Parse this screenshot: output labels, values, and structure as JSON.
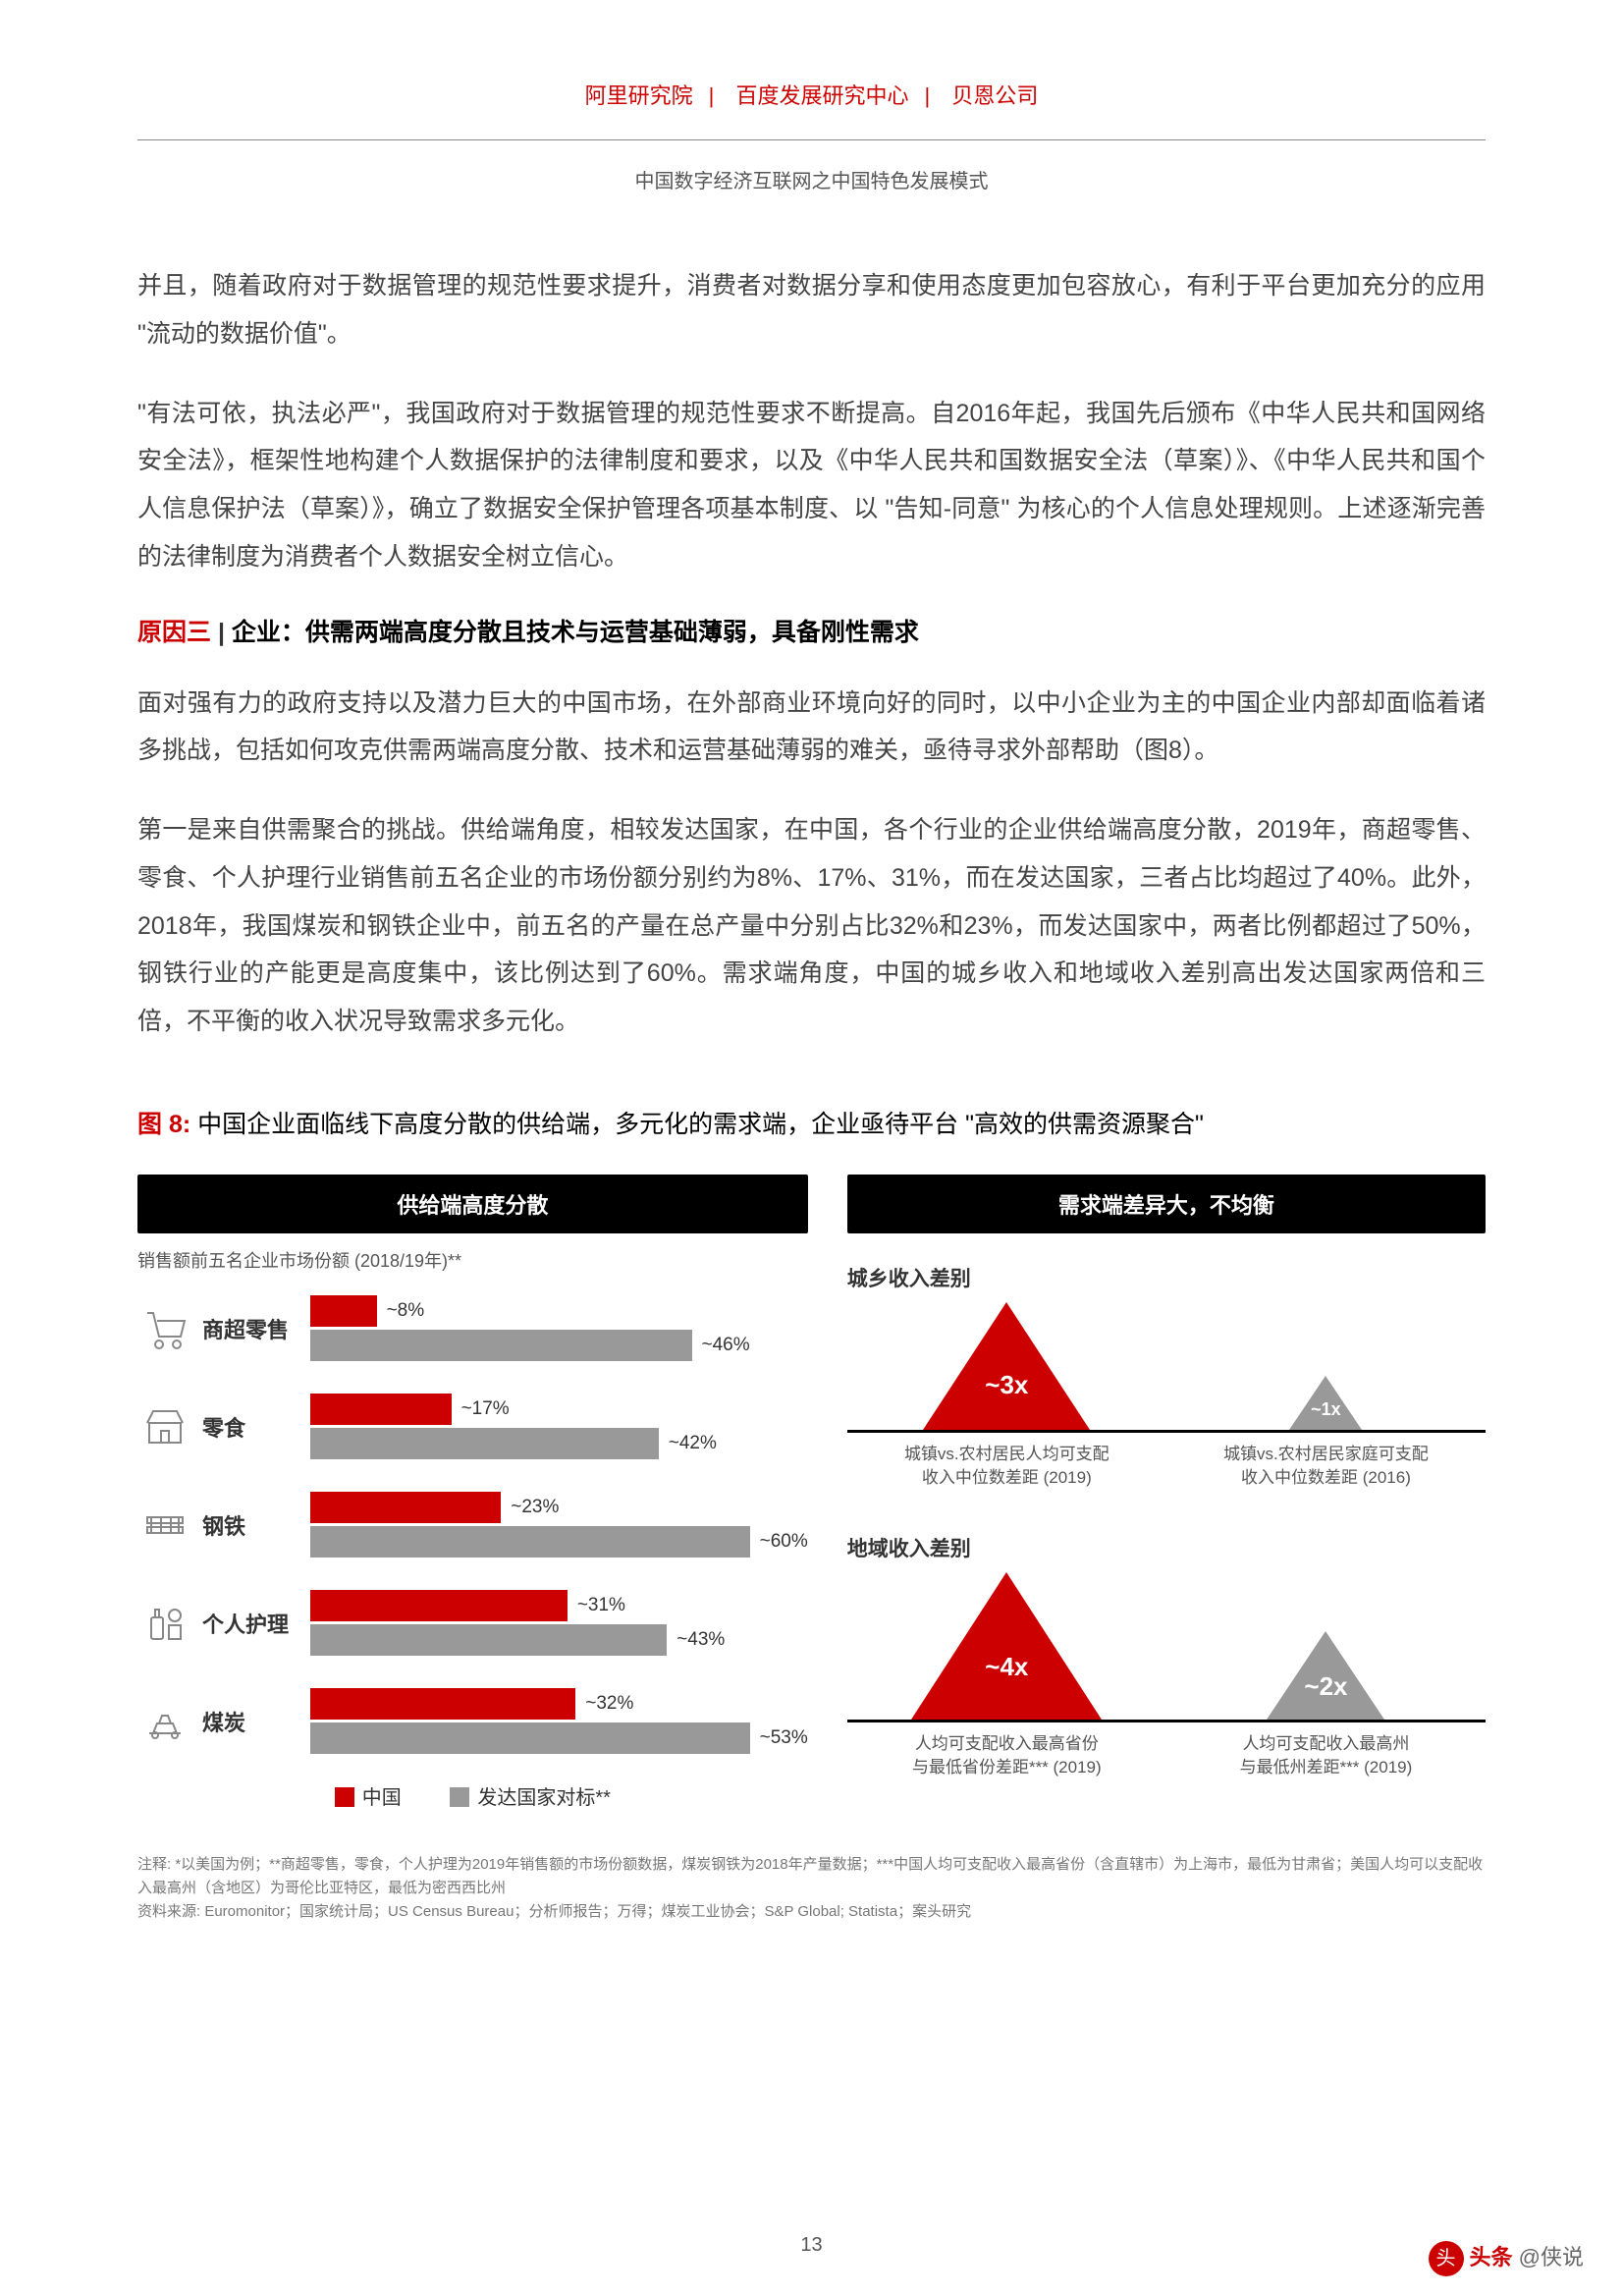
{
  "header": {
    "org1": "阿里研究院",
    "org2": "百度发展研究中心",
    "org3": "贝恩公司"
  },
  "titleLine": "中国数字经济互联网之中国特色发展模式",
  "para1": "并且，随着政府对于数据管理的规范性要求提升，消费者对数据分享和使用态度更加包容放心，有利于平台更加充分的应用 \"流动的数据价值\"。",
  "para2": "\"有法可依，执法必严\"，我国政府对于数据管理的规范性要求不断提高。自2016年起，我国先后颁布《中华人民共和国网络安全法》，框架性地构建个人数据保护的法律制度和要求，以及《中华人民共和国数据安全法（草案）》、《中华人民共和国个人信息保护法（草案）》，确立了数据安全保护管理各项基本制度、以 \"告知-同意\" 为核心的个人信息处理规则。上述逐渐完善的法律制度为消费者个人数据安全树立信心。",
  "reason": {
    "red": "原因三",
    "divider": " | ",
    "black": "企业：供需两端高度分散且技术与运营基础薄弱，具备刚性需求"
  },
  "para3": "面对强有力的政府支持以及潜力巨大的中国市场，在外部商业环境向好的同时，以中小企业为主的中国企业内部却面临着诸多挑战，包括如何攻克供需两端高度分散、技术和运营基础薄弱的难关，亟待寻求外部帮助（图8）。",
  "para4": "第一是来自供需聚合的挑战。供给端角度，相较发达国家，在中国，各个行业的企业供给端高度分散，2019年，商超零售、零食、个人护理行业销售前五名企业的市场份额分别约为8%、17%、31%，而在发达国家，三者占比均超过了40%。此外，2018年，我国煤炭和钢铁企业中，前五名的产量在总产量中分别占比32%和23%，而发达国家中，两者比例都超过了50%，钢铁行业的产能更是高度集中，该比例达到了60%。需求端角度，中国的城乡收入和地域收入差别高出发达国家两倍和三倍，不平衡的收入状况导致需求多元化。",
  "figure": {
    "prefix": "图 8:",
    "title": " 中国企业面临线下高度分散的供给端，多元化的需求端，企业亟待平台 \"高效的供需资源聚合\"",
    "left": {
      "header": "供给端高度分散",
      "subcap": "销售额前五名企业市场份额 (2018/19年)**",
      "scale": 60,
      "rows": [
        {
          "icon": "cart",
          "label": "商超零售",
          "china": 8,
          "chinaLbl": "~8%",
          "dev": 46,
          "devLbl": "~46%"
        },
        {
          "icon": "shop",
          "label": "零食",
          "china": 17,
          "chinaLbl": "~17%",
          "dev": 42,
          "devLbl": "~42%"
        },
        {
          "icon": "steel",
          "label": "钢铁",
          "china": 23,
          "chinaLbl": "~23%",
          "dev": 60,
          "devLbl": "~60%"
        },
        {
          "icon": "care",
          "label": "个人护理",
          "china": 31,
          "chinaLbl": "~31%",
          "dev": 43,
          "devLbl": "~43%"
        },
        {
          "icon": "coal",
          "label": "煤炭",
          "china": 32,
          "chinaLbl": "~32%",
          "dev": 53,
          "devLbl": "~53%"
        }
      ],
      "legend": {
        "china": "中国",
        "dev": "发达国家对标**"
      }
    },
    "right": {
      "header": "需求端差异大，不均衡",
      "groups": [
        {
          "title": "城乡收入差别",
          "tris": [
            {
              "val": "~3x",
              "h": 130,
              "w": 170,
              "color": "#cc0000",
              "numBottom": 30
            },
            {
              "val": "~1x",
              "h": 55,
              "w": 75,
              "color": "#999",
              "numBottom": 10,
              "font": 18
            }
          ],
          "caps": [
            "城镇vs.农村居民人均可支配\n收入中位数差距 (2019)",
            "城镇vs.农村居民家庭可支配\n收入中位数差距 (2016)"
          ]
        },
        {
          "title": "地域收入差别",
          "tris": [
            {
              "val": "~4x",
              "h": 150,
              "w": 195,
              "color": "#cc0000",
              "numBottom": 38
            },
            {
              "val": "~2x",
              "h": 90,
              "w": 120,
              "color": "#999",
              "numBottom": 18
            }
          ],
          "caps": [
            "人均可支配收入最高省份\n与最低省份差距*** (2019)",
            "人均可支配收入最高州\n与最低州差距*** (2019)"
          ]
        }
      ]
    }
  },
  "footnote": "注释: *以美国为例；**商超零售，零食，个人护理为2019年销售额的市场份额数据，煤炭钢铁为2018年产量数据；***中国人均可支配收入最高省份（含直辖市）为上海市，最低为甘肃省；美国人均可以支配收入最高州（含地区）为哥伦比亚特区，最低为密西西比州\n资料来源: Euromonitor；国家统计局；US Census Bureau；分析师报告；万得；煤炭工业协会；S&P Global; Statista；案头研究",
  "pageNum": "13",
  "watermark": {
    "brand": "头条",
    "at": " @侠说"
  }
}
